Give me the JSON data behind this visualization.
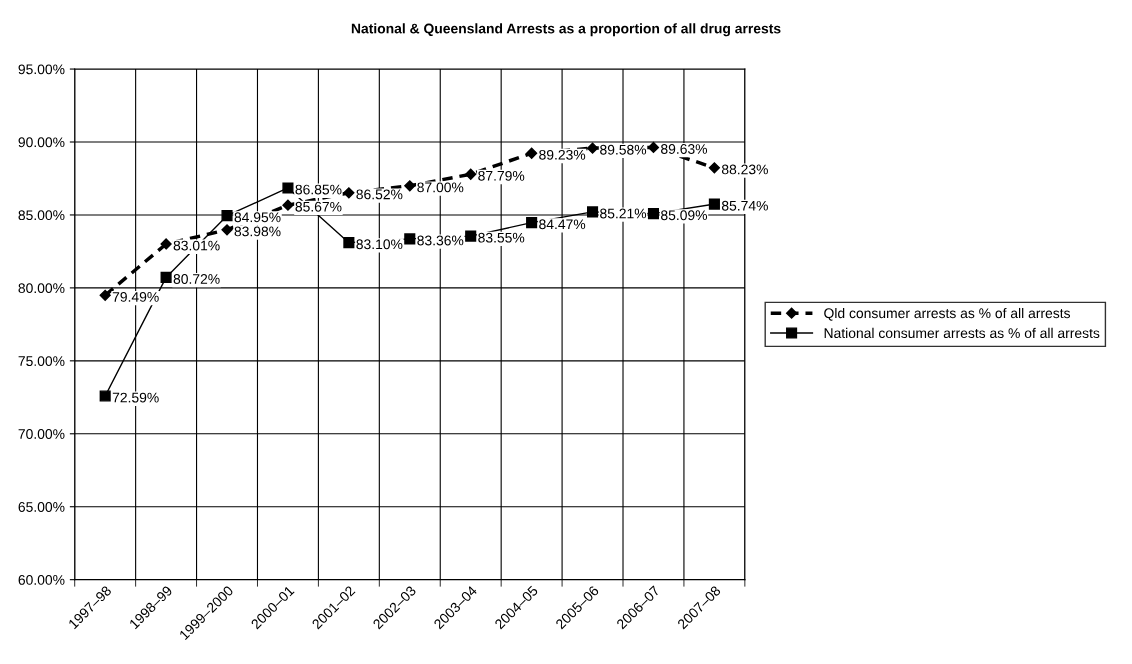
{
  "chart_data": {
    "type": "line",
    "title": "National & Queensland Arrests as a proportion of all drug arrests",
    "categories": [
      "1997–98",
      "1998–99",
      "1999–2000",
      "2000–01",
      "2001–02",
      "2002–03",
      "2003–04",
      "2004–05",
      "2005–06",
      "2006–07",
      "2007–08"
    ],
    "series": [
      {
        "name": "Qld consumer arrests as % of all arrests",
        "color": "#000000",
        "marker": "diamond",
        "line_style": "dashed",
        "values": [
          79.49,
          83.01,
          83.98,
          85.67,
          86.52,
          87.0,
          87.79,
          89.23,
          89.58,
          89.63,
          88.23
        ],
        "value_labels": [
          "79.49%",
          "83.01%",
          "83.98%",
          "85.67%",
          "86.52%",
          "87.00%",
          "87.79%",
          "89.23%",
          "89.58%",
          "89.63%",
          "88.23%"
        ]
      },
      {
        "name": "National consumer arrests as % of all arrests",
        "color": "#000000",
        "marker": "square",
        "line_style": "solid",
        "values": [
          72.59,
          80.72,
          84.95,
          86.85,
          83.1,
          83.36,
          83.55,
          84.47,
          85.21,
          85.09,
          85.74
        ],
        "value_labels": [
          "72.59%",
          "80.72%",
          "84.95%",
          "86.85%",
          "83.10%",
          "83.36%",
          "83.55%",
          "84.47%",
          "85.21%",
          "85.09%",
          "85.74%"
        ]
      }
    ],
    "ylim": [
      60,
      95
    ],
    "yticks": [
      {
        "value": 60,
        "label": "60.00%"
      },
      {
        "value": 65,
        "label": "65.00%"
      },
      {
        "value": 70,
        "label": "70.00%"
      },
      {
        "value": 75,
        "label": "75.00%"
      },
      {
        "value": 80,
        "label": "80.00%"
      },
      {
        "value": 85,
        "label": "85.00%"
      },
      {
        "value": 90,
        "label": "90.00%"
      },
      {
        "value": 95,
        "label": "95.00%"
      }
    ],
    "grid": true,
    "legend": "right"
  }
}
